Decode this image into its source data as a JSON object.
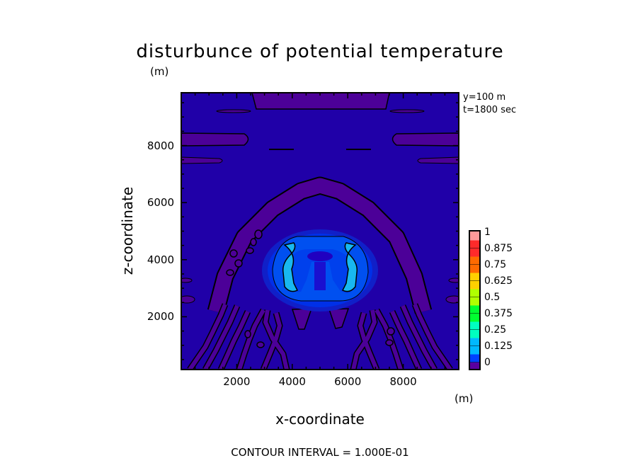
{
  "chart_data": {
    "type": "contour",
    "title": "disturbunce of potential temperature",
    "xlabel": "x-coordinate",
    "ylabel": "z-coordinate",
    "x_unit": "(m)",
    "y_unit": "(m)",
    "xlim": [
      0,
      10000
    ],
    "ylim": [
      150,
      9850
    ],
    "x_ticks": [
      2000,
      4000,
      6000,
      8000
    ],
    "y_ticks": [
      2000,
      4000,
      6000,
      8000
    ],
    "annotations": [
      "y=100 m",
      "t=1800 sec"
    ],
    "footer": "CONTOUR INTERVAL = 1.000E-01",
    "contour_interval": 0.1,
    "colorbar": {
      "levels": [
        "1",
        "0.875",
        "0.75",
        "0.625",
        "0.5",
        "0.375",
        "0.25",
        "0.125",
        "0"
      ],
      "range": [
        0,
        1
      ],
      "colors": [
        "#ff9a9a",
        "#ff2a2a",
        "#ff6a00",
        "#ffd000",
        "#b0ff00",
        "#00ff30",
        "#00ffc0",
        "#00b8ff",
        "#0040ff",
        "#1000b0",
        "#5a00a0"
      ]
    },
    "field_colors": {
      "background": "#2000a8",
      "negative": "#4c0098",
      "low": "#0030e8",
      "mid": "#0060f4",
      "high": "#18b8f0"
    }
  }
}
